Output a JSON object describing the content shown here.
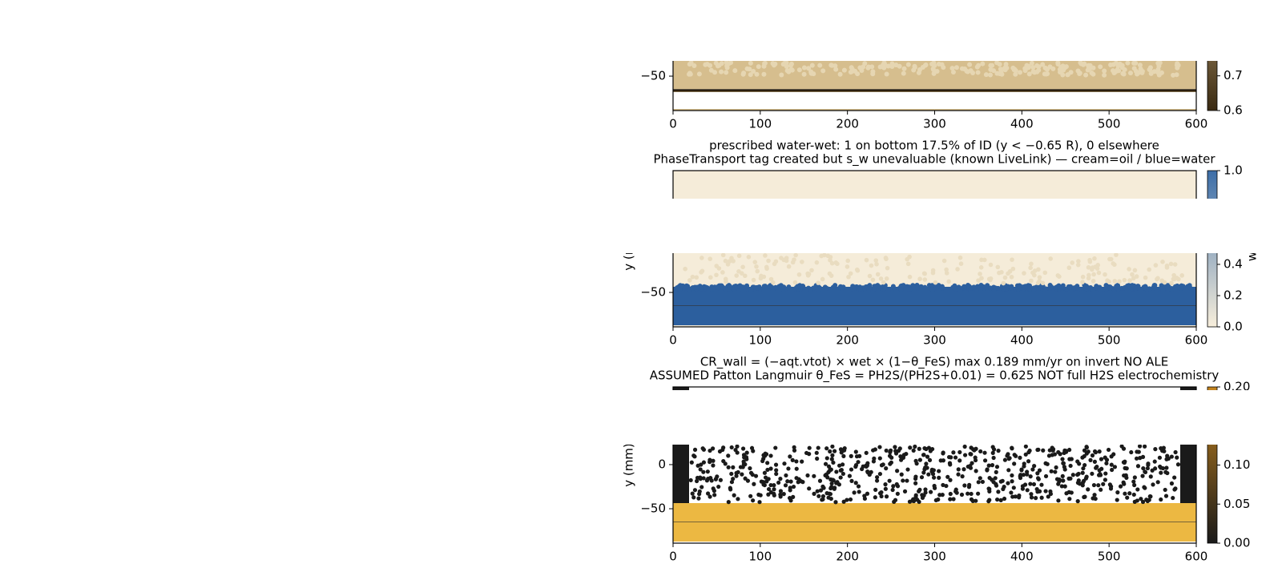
{
  "chart_data": [
    {
      "type": "heatmap",
      "xlim": [
        0,
        600
      ],
      "xticks": [
        0,
        100,
        200,
        300,
        400,
        500,
        600
      ],
      "ylim": [
        -89,
        88
      ],
      "yticks": [
        {
          "value": -50,
          "label": "−50"
        }
      ],
      "clim": [
        0.6,
        1.05
      ],
      "colorbar_ticks": [
        0.7,
        0.6
      ]
    },
    {
      "type": "heatmap",
      "title": [
        "prescribed water-wet: 1 on bottom 17.5% of ID (y < −0.65 R), 0 elsewhere",
        "PhaseTransport tag created but s_w unevaluable (known LiveLink) — cream=oil / blue=water"
      ],
      "xlim": [
        0,
        600
      ],
      "xticks": [
        0,
        100,
        200,
        300,
        400,
        500,
        600
      ],
      "ylim": [
        -89,
        88
      ],
      "yticks": [
        {
          "value": -50,
          "label": "−50"
        }
      ],
      "ylabel": "y (mm)",
      "clim": [
        0,
        1
      ],
      "colorbar_ticks": [
        {
          "value": 1,
          "label": "1.0"
        },
        0.4,
        0.2,
        {
          "value": 0,
          "label": "0.0"
        }
      ],
      "colorbar_label": "w"
    },
    {
      "type": "heatmap",
      "title": [
        "CR_wall = (−aqt.vtot) × wet × (1−θ_FeS)   max 0.189 mm/yr on invert   NO ALE",
        "ASSUMED Patton Langmuir θ_FeS = PH2S/(PH2S+0.01) = 0.625   NOT full H2S electrochemistry"
      ],
      "xlim": [
        0,
        600
      ],
      "xticks": [
        0,
        100,
        200,
        300,
        400,
        500,
        600
      ],
      "ylim": [
        -89,
        88
      ],
      "yticks": [
        0,
        {
          "value": -50,
          "label": "−50"
        }
      ],
      "ylabel": "y (mm)",
      "clim": [
        0,
        0.2
      ],
      "colorbar_ticks": [
        {
          "value": 0.2,
          "label": "0.20"
        },
        {
          "value": 0.1,
          "label": "0.10"
        },
        0.05,
        {
          "value": 0,
          "label": "0.00"
        }
      ]
    }
  ]
}
